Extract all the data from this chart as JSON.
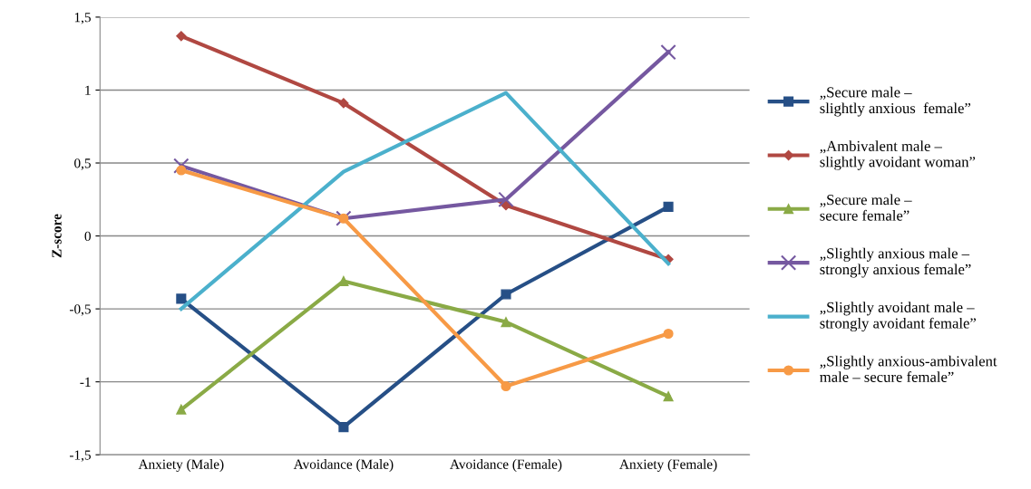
{
  "chart_data": {
    "type": "line",
    "ylabel": "Z-score",
    "categories": [
      "Anxiety (Male)",
      "Avoidance (Male)",
      "Avoidance (Female)",
      "Anxiety (Female)"
    ],
    "ylim": [
      -1.5,
      1.5
    ],
    "yticks": [
      {
        "value": -1.5,
        "label": "-1,5"
      },
      -1,
      {
        "value": -0.5,
        "label": "-0,5"
      },
      0,
      {
        "value": 0.5,
        "label": "0,5"
      },
      1,
      {
        "value": 1.5,
        "label": "1,5"
      }
    ],
    "grid": "y",
    "legend": "right",
    "line_style": "solid",
    "series": [
      {
        "name": "„Secure male –\nslightly anxious  female”",
        "color": "#264f86",
        "marker": "square",
        "values": [
          -0.43,
          -1.31,
          -0.4,
          0.2
        ]
      },
      {
        "name": "„Ambivalent male –\nslightly avoidant woman”",
        "color": "#b04842",
        "marker": "diamond",
        "values": [
          1.37,
          0.91,
          0.21,
          -0.16
        ]
      },
      {
        "name": "„Secure male –\nsecure female”",
        "color": "#8aaa46",
        "marker": "triangle",
        "values": [
          -1.19,
          -0.31,
          -0.59,
          -1.1
        ]
      },
      {
        "name": "„Slightly anxious male –\nstrongly anxious female”",
        "color": "#7558a0",
        "marker": "cross",
        "values": [
          0.48,
          0.12,
          0.25,
          1.26
        ]
      },
      {
        "name": "„Slightly avoidant male –\nstrongly avoidant female”",
        "color": "#4bb0cc",
        "marker": "none",
        "values": [
          -0.5,
          0.44,
          0.98,
          -0.19
        ]
      },
      {
        "name": "„Slightly anxious-ambivalent\nmale – secure female”",
        "color": "#f79a46",
        "marker": "circle",
        "values": [
          0.45,
          0.12,
          -1.03,
          -0.67
        ]
      }
    ]
  }
}
